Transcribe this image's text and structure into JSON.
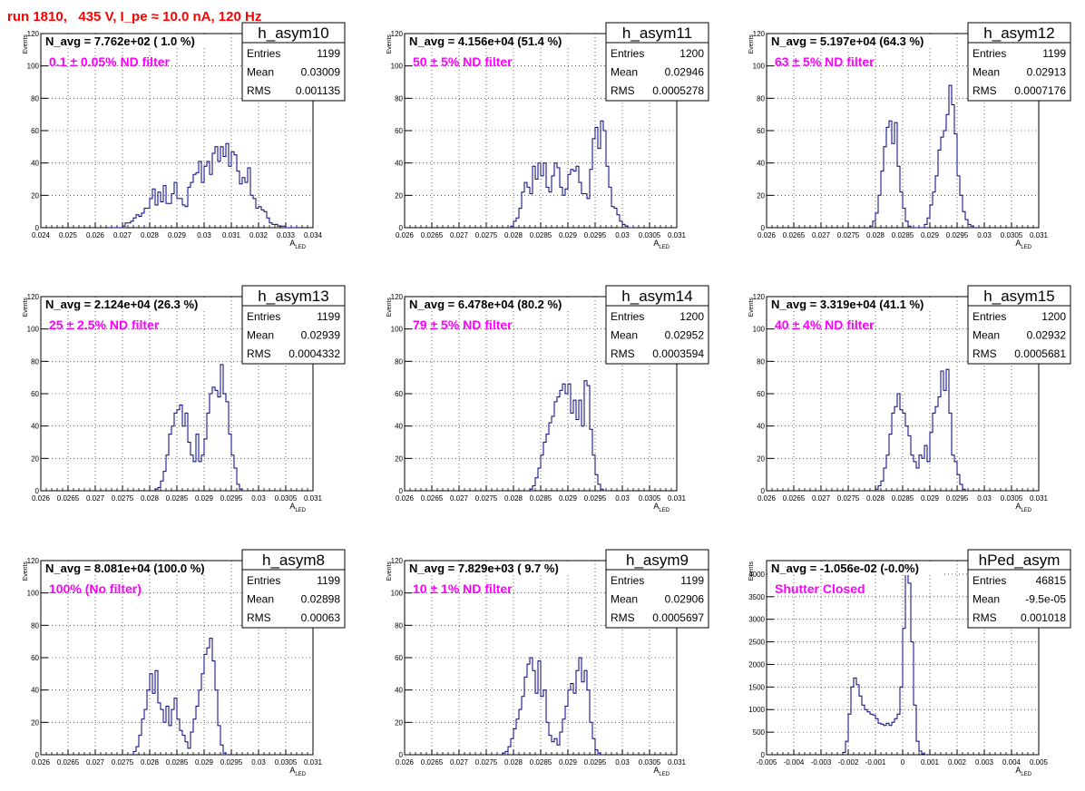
{
  "header": "run 1810,   435 V, I_pe ≈ 10.0 nA, 120 Hz",
  "chart_data": [
    {
      "type": "histogram",
      "name": "h_asym10",
      "navg": "N_avg = 7.762e+02 ( 1.0 %)",
      "filter": "0.1 ± 0.05% ND filter",
      "stats": {
        "Entries": "1199",
        "Mean": "0.03009",
        "RMS": "0.001135"
      },
      "xlim": [
        0.024,
        0.034
      ],
      "ylim": [
        0,
        120
      ],
      "xlabel": "A_LED",
      "ylabel": "Events",
      "xticks": [
        "0.024",
        "0.025",
        "0.026",
        "0.027",
        "0.028",
        "0.029",
        "0.03",
        "0.031",
        "0.032",
        "0.033",
        "0.034"
      ],
      "yticks": [
        "0",
        "20",
        "40",
        "60",
        "80",
        "100",
        "120"
      ],
      "bins": {
        "x0": 0.0265,
        "w": 0.0001,
        "y": [
          0,
          0,
          0,
          0,
          0,
          1,
          3,
          3,
          4,
          6,
          8,
          7,
          9,
          12,
          12,
          18,
          24,
          14,
          22,
          16,
          26,
          15,
          15,
          21,
          28,
          18,
          18,
          14,
          13,
          25,
          28,
          33,
          34,
          41,
          28,
          38,
          41,
          33,
          46,
          50,
          41,
          50,
          44,
          52,
          38,
          47,
          45,
          35,
          27,
          31,
          28,
          37,
          20,
          18,
          12,
          13,
          11,
          10,
          6,
          3,
          2,
          2,
          1,
          1,
          1,
          0,
          0,
          0,
          0,
          0
        ]
      }
    },
    {
      "type": "histogram",
      "name": "h_asym11",
      "navg": "N_avg = 4.156e+04 (51.4 %)",
      "filter": "50 ± 5% ND filter",
      "stats": {
        "Entries": "1200",
        "Mean": "0.02946",
        "RMS": "0.0005278"
      },
      "xlim": [
        0.026,
        0.031
      ],
      "ylim": [
        0,
        120
      ],
      "xlabel": "A_LED",
      "ylabel": "Events",
      "xticks": [
        "0.026",
        "0.0265",
        "0.027",
        "0.0275",
        "0.028",
        "0.0285",
        "0.029",
        "0.0295",
        "0.03",
        "0.0305",
        "0.031"
      ],
      "yticks": [
        "0",
        "20",
        "40",
        "60",
        "80",
        "100",
        "120"
      ],
      "bins": {
        "x0": 0.0279,
        "w": 5e-05,
        "y": [
          0,
          1,
          4,
          6,
          12,
          22,
          28,
          25,
          21,
          38,
          30,
          40,
          32,
          40,
          25,
          22,
          32,
          40,
          37,
          25,
          20,
          24,
          33,
          36,
          35,
          38,
          28,
          21,
          21,
          18,
          36,
          55,
          62,
          49,
          66,
          60,
          38,
          25,
          13,
          12,
          8,
          4,
          2,
          1,
          0,
          0
        ]
      }
    },
    {
      "type": "histogram",
      "name": "h_asym12",
      "navg": "N_avg = 5.197e+04 (64.3 %)",
      "filter": "63 ± 5% ND filter",
      "stats": {
        "Entries": "1199",
        "Mean": "0.02913",
        "RMS": "0.0007176"
      },
      "xlim": [
        0.026,
        0.031
      ],
      "ylim": [
        0,
        120
      ],
      "xlabel": "A_LED",
      "ylabel": "Events",
      "xticks": [
        "0.026",
        "0.0265",
        "0.027",
        "0.0275",
        "0.028",
        "0.0285",
        "0.029",
        "0.0295",
        "0.03",
        "0.0305",
        "0.031"
      ],
      "yticks": [
        "0",
        "20",
        "40",
        "60",
        "80",
        "100",
        "120"
      ],
      "bins": {
        "x0": 0.0279,
        "w": 5e-05,
        "y": [
          1,
          4,
          9,
          20,
          35,
          50,
          62,
          66,
          52,
          65,
          38,
          22,
          12,
          4,
          1,
          0,
          0,
          0,
          0,
          0,
          2,
          6,
          14,
          22,
          32,
          48,
          56,
          60,
          70,
          88,
          76,
          58,
          32,
          20,
          10,
          5,
          2,
          1,
          0,
          0
        ]
      }
    },
    {
      "type": "histogram",
      "name": "h_asym13",
      "navg": "N_avg = 2.124e+04 (26.3 %)",
      "filter": "25 ± 2.5% ND filter",
      "stats": {
        "Entries": "1199",
        "Mean": "0.02939",
        "RMS": "0.0004332"
      },
      "xlim": [
        0.026,
        0.031
      ],
      "ylim": [
        0,
        120
      ],
      "xlabel": "A_LED",
      "ylabel": "Events",
      "xticks": [
        "0.026",
        "0.0265",
        "0.027",
        "0.0275",
        "0.028",
        "0.0285",
        "0.029",
        "0.0295",
        "0.03",
        "0.0305",
        "0.031"
      ],
      "yticks": [
        "0",
        "20",
        "40",
        "60",
        "80",
        "100",
        "120"
      ],
      "bins": {
        "x0": 0.0281,
        "w": 5e-05,
        "y": [
          1,
          2,
          6,
          12,
          22,
          35,
          40,
          48,
          50,
          53,
          40,
          48,
          30,
          22,
          18,
          35,
          18,
          22,
          32,
          48,
          60,
          64,
          62,
          58,
          78,
          60,
          55,
          35,
          22,
          14,
          4,
          1,
          0
        ]
      }
    },
    {
      "type": "histogram",
      "name": "h_asym14",
      "navg": "N_avg = 6.478e+04 (80.2 %)",
      "filter": "79 ± 5% ND filter",
      "stats": {
        "Entries": "1200",
        "Mean": "0.02952",
        "RMS": "0.0003594"
      },
      "xlim": [
        0.026,
        0.031
      ],
      "ylim": [
        0,
        120
      ],
      "xlabel": "A_LED",
      "ylabel": "Events",
      "xticks": [
        "0.026",
        "0.0265",
        "0.027",
        "0.0275",
        "0.028",
        "0.0285",
        "0.029",
        "0.0295",
        "0.03",
        "0.0305",
        "0.031"
      ],
      "yticks": [
        "0",
        "20",
        "40",
        "60",
        "80",
        "100",
        "120"
      ],
      "bins": {
        "x0": 0.0283,
        "w": 5e-05,
        "y": [
          1,
          3,
          8,
          14,
          22,
          30,
          35,
          42,
          46,
          55,
          58,
          62,
          66,
          60,
          66,
          48,
          56,
          44,
          56,
          40,
          68,
          65,
          38,
          22,
          10,
          4,
          1,
          0
        ]
      }
    },
    {
      "type": "histogram",
      "name": "h_asym15",
      "navg": "N_avg = 3.319e+04 (41.1 %)",
      "filter": "40 ± 4% ND filter",
      "stats": {
        "Entries": "1200",
        "Mean": "0.02932",
        "RMS": "0.0005681"
      },
      "xlim": [
        0.026,
        0.031
      ],
      "ylim": [
        0,
        120
      ],
      "xlabel": "A_LED",
      "ylabel": "Events",
      "xticks": [
        "0.026",
        "0.0265",
        "0.027",
        "0.0275",
        "0.028",
        "0.0285",
        "0.029",
        "0.0295",
        "0.03",
        "0.0305",
        "0.031"
      ],
      "yticks": [
        "0",
        "20",
        "40",
        "60",
        "80",
        "100",
        "120"
      ],
      "bins": {
        "x0": 0.028,
        "w": 5e-05,
        "y": [
          1,
          3,
          6,
          14,
          22,
          35,
          48,
          52,
          60,
          50,
          48,
          40,
          34,
          22,
          18,
          14,
          22,
          20,
          28,
          18,
          36,
          48,
          52,
          58,
          74,
          62,
          75,
          48,
          22,
          18,
          10,
          4,
          1,
          0
        ]
      }
    },
    {
      "type": "histogram",
      "name": "h_asym8",
      "navg": "N_avg = 8.081e+04 (100.0 %)",
      "filter": "100% (No filter)",
      "stats": {
        "Entries": "1199",
        "Mean": "0.02898",
        "RMS": "0.00063"
      },
      "xlim": [
        0.026,
        0.031
      ],
      "ylim": [
        0,
        120
      ],
      "xlabel": "A_LED",
      "ylabel": "Events",
      "xticks": [
        "0.026",
        "0.0265",
        "0.027",
        "0.0275",
        "0.028",
        "0.0285",
        "0.029",
        "0.0295",
        "0.03",
        "0.0305",
        "0.031"
      ],
      "yticks": [
        "0",
        "20",
        "40",
        "60",
        "80",
        "100",
        "120"
      ],
      "bins": {
        "x0": 0.0277,
        "w": 5e-05,
        "y": [
          2,
          5,
          12,
          22,
          28,
          40,
          50,
          38,
          52,
          32,
          28,
          20,
          30,
          18,
          28,
          35,
          22,
          15,
          12,
          8,
          4,
          14,
          22,
          30,
          40,
          50,
          62,
          66,
          72,
          58,
          40,
          18,
          6,
          1,
          0
        ]
      }
    },
    {
      "type": "histogram",
      "name": "h_asym9",
      "navg": "N_avg = 7.829e+03 ( 9.7 %)",
      "filter": "10 ± 1% ND filter",
      "stats": {
        "Entries": "1199",
        "Mean": "0.02906",
        "RMS": "0.0005697"
      },
      "xlim": [
        0.026,
        0.031
      ],
      "ylim": [
        0,
        120
      ],
      "xlabel": "A_LED",
      "ylabel": "Events",
      "xticks": [
        "0.026",
        "0.0265",
        "0.027",
        "0.0275",
        "0.028",
        "0.0285",
        "0.029",
        "0.0295",
        "0.03",
        "0.0305",
        "0.031"
      ],
      "yticks": [
        "0",
        "20",
        "40",
        "60",
        "80",
        "100",
        "120"
      ],
      "bins": {
        "x0": 0.0278,
        "w": 5e-05,
        "y": [
          1,
          2,
          5,
          10,
          16,
          22,
          28,
          36,
          48,
          56,
          60,
          52,
          38,
          58,
          36,
          40,
          20,
          12,
          8,
          10,
          6,
          14,
          22,
          30,
          40,
          44,
          38,
          52,
          60,
          45,
          52,
          40,
          20,
          10,
          3,
          1,
          0
        ]
      }
    },
    {
      "type": "histogram",
      "name": "hPed_asym",
      "navg": "N_avg = -1.056e-02 (-0.0%)",
      "filter": "Shutter Closed",
      "stats": {
        "Entries": "46815",
        "Mean": "-9.5e-05",
        "RMS": "0.001018"
      },
      "xlim": [
        -0.005,
        0.005
      ],
      "ylim": [
        0,
        4300
      ],
      "xlabel": "A_LED",
      "ylabel": "Events",
      "xticks": [
        "-0.005",
        "-0.004",
        "-0.003",
        "-0.002",
        "-0.001",
        "0",
        "0.001",
        "0.002",
        "0.003",
        "0.004",
        "0.005"
      ],
      "yticks": [
        "0",
        "500",
        "1000",
        "1500",
        "2000",
        "2500",
        "3000",
        "3500",
        "4000"
      ],
      "bins": {
        "x0": -0.0022,
        "w": 0.0001,
        "y": [
          50,
          300,
          900,
          1500,
          1700,
          1550,
          1300,
          1100,
          1000,
          950,
          900,
          880,
          800,
          700,
          680,
          650,
          700,
          650,
          720,
          800,
          900,
          1500,
          2800,
          4000,
          3800,
          2500,
          1100,
          300,
          80,
          20,
          0
        ]
      }
    }
  ]
}
